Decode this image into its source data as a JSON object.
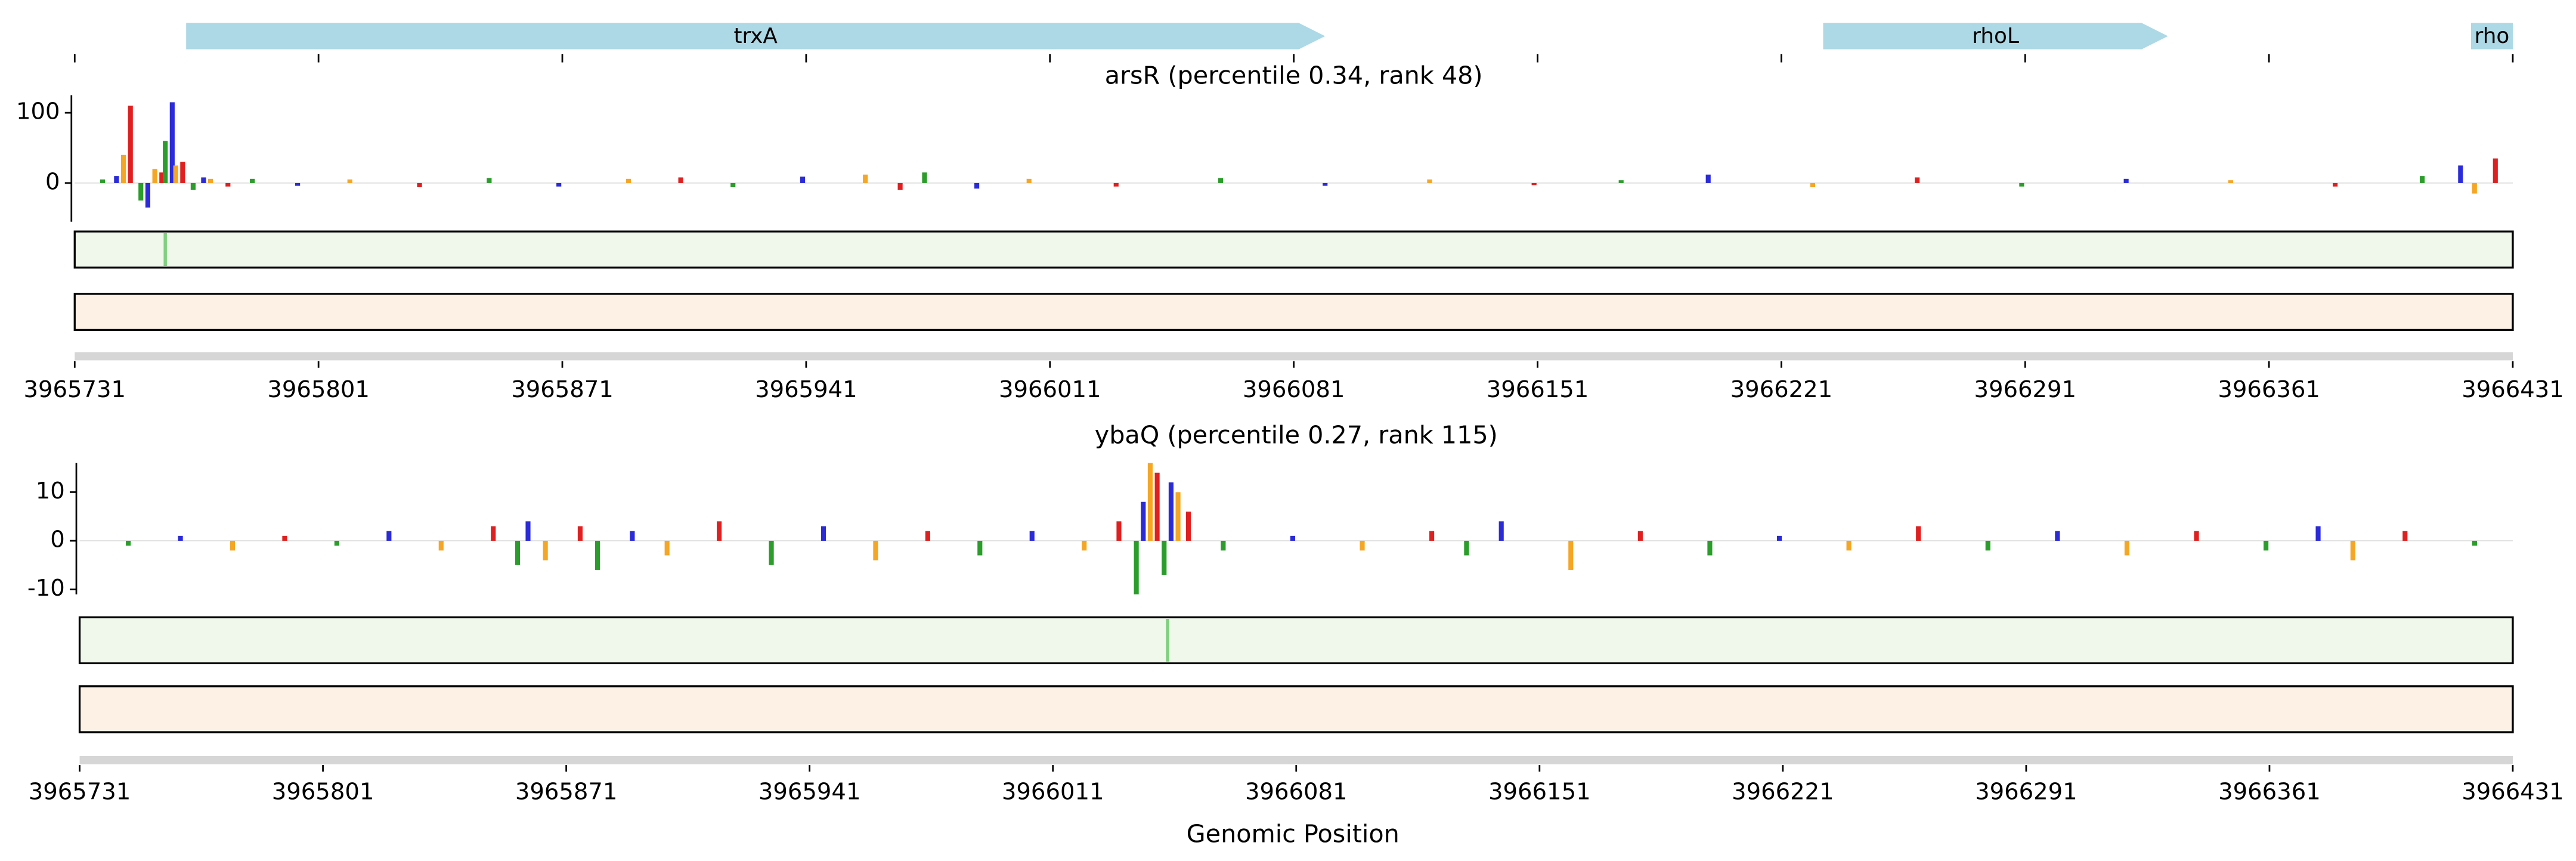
{
  "chart_data": [
    {
      "type": "genes",
      "xlim": [
        3965731,
        3966431
      ],
      "xticks": [
        3965731,
        3965801,
        3965871,
        3965941,
        3966011,
        3966081,
        3966151,
        3966221,
        3966291,
        3966361,
        3966431
      ],
      "color": "#add8e6",
      "genes": [
        {
          "name": "trxA",
          "start": 3965763,
          "end": 3966090
        },
        {
          "name": "rhoL",
          "start": 3966233,
          "end": 3966332
        },
        {
          "name": "rho",
          "start": 3966419,
          "end": 3966431
        }
      ]
    },
    {
      "type": "logo",
      "title": "arsR (percentile 0.34, rank 48)",
      "xlim": [
        3965731,
        3966431
      ],
      "ylim": [
        -55,
        125
      ],
      "yticks": [
        0,
        100
      ],
      "xticks": [
        3965731,
        3965801,
        3965871,
        3965941,
        3966011,
        3966081,
        3966151,
        3966221,
        3966291,
        3966361,
        3966431
      ],
      "colors": [
        "#2a9d2a",
        "#2b2bd9",
        "#f5a623",
        "#e02020"
      ],
      "highlight": 3965757,
      "track_colors": [
        "#f0f8ec",
        "#fdf1e6"
      ],
      "x": [
        3965739,
        3965743,
        3965745,
        3965747,
        3965750,
        3965752,
        3965754,
        3965756,
        3965757,
        3965759,
        3965760,
        3965762,
        3965765,
        3965768,
        3965770,
        3965775,
        3965782,
        3965795,
        3965810,
        3965830,
        3965850,
        3965870,
        3965890,
        3965905,
        3965920,
        3965940,
        3965958,
        3965968,
        3965975,
        3965990,
        3966005,
        3966030,
        3966060,
        3966090,
        3966120,
        3966150,
        3966175,
        3966200,
        3966230,
        3966260,
        3966290,
        3966320,
        3966350,
        3966380,
        3966405,
        3966416,
        3966420,
        3966426
      ],
      "values": [
        5,
        10,
        40,
        110,
        -25,
        -35,
        20,
        15,
        60,
        115,
        25,
        30,
        -10,
        8,
        6,
        -5,
        6,
        -4,
        5,
        -6,
        7,
        -5,
        6,
        8,
        -6,
        9,
        12,
        -10,
        15,
        -8,
        6,
        -5,
        7,
        -4,
        5,
        -3,
        4,
        12,
        -6,
        8,
        -5,
        6,
        4,
        -5,
        10,
        25,
        -15,
        35
      ]
    },
    {
      "type": "logo",
      "title": "ybaQ (percentile 0.27, rank 115)",
      "xlim": [
        3965731,
        3966431
      ],
      "ylim": [
        -11,
        16
      ],
      "yticks": [
        -10,
        0,
        10
      ],
      "xticks": [
        3965731,
        3965801,
        3965871,
        3965941,
        3966011,
        3966081,
        3966151,
        3966221,
        3966291,
        3966361,
        3966431
      ],
      "colors": [
        "#2a9d2a",
        "#2b2bd9",
        "#f5a623",
        "#e02020"
      ],
      "highlight": 3966044,
      "track_colors": [
        "#f0f8ec",
        "#fdf1e6"
      ],
      "xlabel": "Genomic Position",
      "x": [
        3965745,
        3965760,
        3965775,
        3965790,
        3965805,
        3965820,
        3965835,
        3965850,
        3965857,
        3965860,
        3965865,
        3965875,
        3965880,
        3965890,
        3965900,
        3965915,
        3965930,
        3965945,
        3965960,
        3965975,
        3965990,
        3966005,
        3966020,
        3966030,
        3966035,
        3966037,
        3966039,
        3966041,
        3966043,
        3966045,
        3966047,
        3966050,
        3966060,
        3966080,
        3966100,
        3966120,
        3966130,
        3966140,
        3966160,
        3966180,
        3966200,
        3966220,
        3966240,
        3966260,
        3966280,
        3966300,
        3966320,
        3966340,
        3966360,
        3966375,
        3966385,
        3966400,
        3966420
      ],
      "values": [
        -1,
        1,
        -2,
        1,
        -1,
        2,
        -2,
        3,
        -5,
        4,
        -4,
        3,
        -6,
        2,
        -3,
        4,
        -5,
        3,
        -4,
        2,
        -3,
        2,
        -2,
        4,
        -11,
        8,
        16,
        14,
        -7,
        12,
        10,
        6,
        -2,
        1,
        -2,
        2,
        -3,
        4,
        -6,
        2,
        -3,
        1,
        -2,
        3,
        -2,
        2,
        -3,
        2,
        -2,
        3,
        -4,
        2,
        -1
      ]
    }
  ]
}
